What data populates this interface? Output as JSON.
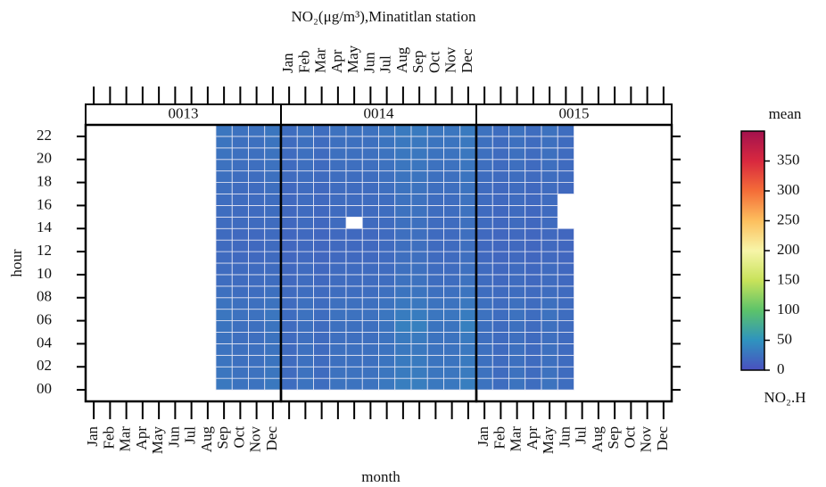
{
  "chart_data": {
    "type": "heatmap",
    "title": "NO₂(μg/m³),Minatitlan station",
    "xlabel": "month",
    "ylabel": "hour",
    "categories": [
      "Jan",
      "Feb",
      "Mar",
      "Apr",
      "May",
      "Jun",
      "Jul",
      "Aug",
      "Sep",
      "Oct",
      "Nov",
      "Dec"
    ],
    "ylim": [
      -1,
      23
    ],
    "yticks": [
      {
        "value": 0,
        "label": "00"
      },
      {
        "value": 2,
        "label": "02"
      },
      {
        "value": 4,
        "label": "04"
      },
      {
        "value": 6,
        "label": "06"
      },
      {
        "value": 8,
        "label": "08"
      },
      {
        "value": 10,
        "label": "10"
      },
      {
        "value": 12,
        "label": "12"
      },
      {
        "value": 14,
        "label": "14"
      },
      {
        "value": 16,
        "label": "16"
      },
      {
        "value": 18,
        "label": "18"
      },
      {
        "value": 20,
        "label": "20"
      },
      {
        "value": 22,
        "label": "22"
      }
    ],
    "colorbar": {
      "title": "mean",
      "label": "NO₂.H",
      "lim": [
        0,
        400
      ],
      "ticks": [
        0,
        50,
        100,
        150,
        200,
        250,
        300,
        350
      ],
      "colors": [
        "#4a50bf",
        "#2f93bf",
        "#5cc36a",
        "#c8e25a",
        "#f7f5a8",
        "#fdbf5e",
        "#f46d38",
        "#d8283f",
        "#a3124e"
      ]
    },
    "panels": [
      {
        "name": "0013",
        "values": [
          [
            null,
            null,
            null,
            null,
            null,
            null,
            null,
            null,
            null,
            null,
            null,
            null,
            null,
            null,
            null,
            null,
            null,
            null,
            null,
            null,
            null,
            null,
            null,
            null
          ],
          [
            null,
            null,
            null,
            null,
            null,
            null,
            null,
            null,
            null,
            null,
            null,
            null,
            null,
            null,
            null,
            null,
            null,
            null,
            null,
            null,
            null,
            null,
            null,
            null
          ],
          [
            null,
            null,
            null,
            null,
            null,
            null,
            null,
            null,
            null,
            null,
            null,
            null,
            null,
            null,
            null,
            null,
            null,
            null,
            null,
            null,
            null,
            null,
            null,
            null
          ],
          [
            null,
            null,
            null,
            null,
            null,
            null,
            null,
            null,
            null,
            null,
            null,
            null,
            null,
            null,
            null,
            null,
            null,
            null,
            null,
            null,
            null,
            null,
            null,
            null
          ],
          [
            null,
            null,
            null,
            null,
            null,
            null,
            null,
            null,
            null,
            null,
            null,
            null,
            null,
            null,
            null,
            null,
            null,
            null,
            null,
            null,
            null,
            null,
            null,
            null
          ],
          [
            null,
            null,
            null,
            null,
            null,
            null,
            null,
            null,
            null,
            null,
            null,
            null,
            null,
            null,
            null,
            null,
            null,
            null,
            null,
            null,
            null,
            null,
            null,
            null
          ],
          [
            null,
            null,
            null,
            null,
            null,
            null,
            null,
            null,
            null,
            null,
            null,
            null,
            null,
            null,
            null,
            null,
            null,
            null,
            null,
            null,
            null,
            null,
            null,
            null
          ],
          [
            null,
            null,
            null,
            null,
            null,
            null,
            null,
            null,
            null,
            null,
            null,
            null,
            null,
            null,
            null,
            null,
            null,
            null,
            null,
            null,
            null,
            null,
            null,
            null
          ],
          [
            30,
            28,
            27,
            26,
            26,
            27,
            28,
            26,
            24,
            22,
            21,
            20,
            20,
            20,
            21,
            22,
            22,
            23,
            24,
            25,
            26,
            27,
            28,
            29
          ],
          [
            26,
            25,
            24,
            24,
            23,
            24,
            25,
            24,
            22,
            21,
            20,
            19,
            19,
            19,
            20,
            20,
            21,
            21,
            22,
            23,
            24,
            24,
            25,
            26
          ],
          [
            26,
            25,
            24,
            24,
            23,
            24,
            25,
            24,
            22,
            21,
            20,
            19,
            19,
            19,
            20,
            20,
            21,
            21,
            22,
            23,
            24,
            24,
            25,
            26
          ],
          [
            30,
            28,
            27,
            26,
            26,
            27,
            28,
            26,
            24,
            22,
            21,
            20,
            20,
            20,
            21,
            22,
            22,
            23,
            24,
            25,
            26,
            27,
            28,
            29
          ]
        ]
      },
      {
        "name": "0014",
        "values": [
          [
            22,
            21,
            21,
            20,
            20,
            21,
            22,
            21,
            20,
            19,
            18,
            17,
            17,
            17,
            18,
            18,
            19,
            19,
            20,
            20,
            21,
            21,
            22,
            22
          ],
          [
            26,
            25,
            24,
            24,
            23,
            24,
            25,
            24,
            22,
            21,
            20,
            19,
            19,
            19,
            20,
            20,
            21,
            21,
            22,
            23,
            24,
            24,
            25,
            26
          ],
          [
            22,
            21,
            21,
            20,
            20,
            21,
            22,
            21,
            20,
            19,
            18,
            17,
            17,
            17,
            18,
            18,
            19,
            19,
            20,
            20,
            21,
            21,
            22,
            22
          ],
          [
            26,
            25,
            24,
            24,
            23,
            24,
            25,
            24,
            22,
            21,
            20,
            19,
            19,
            19,
            20,
            20,
            21,
            21,
            22,
            23,
            24,
            24,
            25,
            26
          ],
          [
            26,
            25,
            24,
            24,
            23,
            24,
            25,
            24,
            22,
            21,
            20,
            19,
            19,
            19,
            null,
            20,
            21,
            21,
            22,
            23,
            24,
            24,
            25,
            26
          ],
          [
            26,
            25,
            24,
            24,
            23,
            24,
            25,
            24,
            22,
            21,
            20,
            19,
            19,
            19,
            20,
            20,
            21,
            21,
            22,
            23,
            24,
            24,
            25,
            26
          ],
          [
            30,
            28,
            27,
            26,
            26,
            27,
            28,
            26,
            24,
            22,
            21,
            20,
            20,
            20,
            21,
            22,
            22,
            23,
            24,
            25,
            26,
            27,
            28,
            29
          ],
          [
            34,
            32,
            31,
            30,
            31,
            36,
            33,
            30,
            27,
            25,
            24,
            23,
            23,
            23,
            24,
            25,
            25,
            26,
            27,
            28,
            29,
            30,
            31,
            33
          ],
          [
            34,
            32,
            31,
            30,
            31,
            36,
            33,
            30,
            27,
            25,
            24,
            23,
            23,
            23,
            24,
            25,
            25,
            26,
            27,
            28,
            29,
            30,
            31,
            33
          ],
          [
            30,
            28,
            27,
            26,
            26,
            27,
            28,
            26,
            24,
            22,
            21,
            20,
            20,
            20,
            21,
            22,
            22,
            23,
            24,
            25,
            26,
            27,
            28,
            29
          ],
          [
            30,
            28,
            27,
            26,
            26,
            27,
            28,
            26,
            24,
            22,
            21,
            20,
            20,
            20,
            21,
            22,
            22,
            23,
            24,
            25,
            26,
            27,
            28,
            29
          ],
          [
            34,
            32,
            31,
            30,
            31,
            36,
            33,
            30,
            27,
            25,
            24,
            23,
            23,
            23,
            24,
            25,
            25,
            26,
            27,
            28,
            29,
            30,
            31,
            33
          ]
        ]
      },
      {
        "name": "0015",
        "values": [
          [
            26,
            25,
            24,
            24,
            23,
            24,
            25,
            24,
            22,
            21,
            20,
            19,
            19,
            19,
            20,
            20,
            21,
            21,
            22,
            23,
            24,
            24,
            25,
            26
          ],
          [
            22,
            21,
            21,
            20,
            20,
            21,
            22,
            21,
            20,
            19,
            18,
            17,
            17,
            17,
            18,
            18,
            19,
            19,
            20,
            20,
            21,
            21,
            22,
            22
          ],
          [
            26,
            25,
            24,
            24,
            23,
            24,
            25,
            24,
            22,
            21,
            20,
            19,
            19,
            19,
            20,
            20,
            21,
            21,
            22,
            23,
            24,
            24,
            25,
            26
          ],
          [
            22,
            21,
            21,
            20,
            20,
            21,
            22,
            21,
            20,
            19,
            18,
            17,
            17,
            17,
            18,
            18,
            19,
            19,
            20,
            20,
            21,
            21,
            22,
            22
          ],
          [
            26,
            25,
            24,
            24,
            23,
            24,
            25,
            24,
            22,
            21,
            20,
            19,
            19,
            19,
            20,
            20,
            21,
            21,
            22,
            23,
            24,
            24,
            25,
            26
          ],
          [
            22,
            21,
            21,
            20,
            20,
            21,
            22,
            21,
            20,
            19,
            18,
            17,
            17,
            17,
            null,
            null,
            null,
            19,
            20,
            20,
            21,
            21,
            22,
            22
          ],
          [
            null,
            null,
            null,
            null,
            null,
            null,
            null,
            null,
            null,
            null,
            null,
            null,
            null,
            null,
            null,
            null,
            null,
            null,
            null,
            null,
            null,
            null,
            null,
            null
          ],
          [
            null,
            null,
            null,
            null,
            null,
            null,
            null,
            null,
            null,
            null,
            null,
            null,
            null,
            null,
            null,
            null,
            null,
            null,
            null,
            null,
            null,
            null,
            null,
            null
          ],
          [
            null,
            null,
            null,
            null,
            null,
            null,
            null,
            null,
            null,
            null,
            null,
            null,
            null,
            null,
            null,
            null,
            null,
            null,
            null,
            null,
            null,
            null,
            null,
            null
          ],
          [
            null,
            null,
            null,
            null,
            null,
            null,
            null,
            null,
            null,
            null,
            null,
            null,
            null,
            null,
            null,
            null,
            null,
            null,
            null,
            null,
            null,
            null,
            null,
            null
          ],
          [
            null,
            null,
            null,
            null,
            null,
            null,
            null,
            null,
            null,
            null,
            null,
            null,
            null,
            null,
            null,
            null,
            null,
            null,
            null,
            null,
            null,
            null,
            null,
            null
          ],
          [
            null,
            null,
            null,
            null,
            null,
            null,
            null,
            null,
            null,
            null,
            null,
            null,
            null,
            null,
            null,
            null,
            null,
            null,
            null,
            null,
            null,
            null,
            null,
            null
          ]
        ]
      }
    ]
  }
}
